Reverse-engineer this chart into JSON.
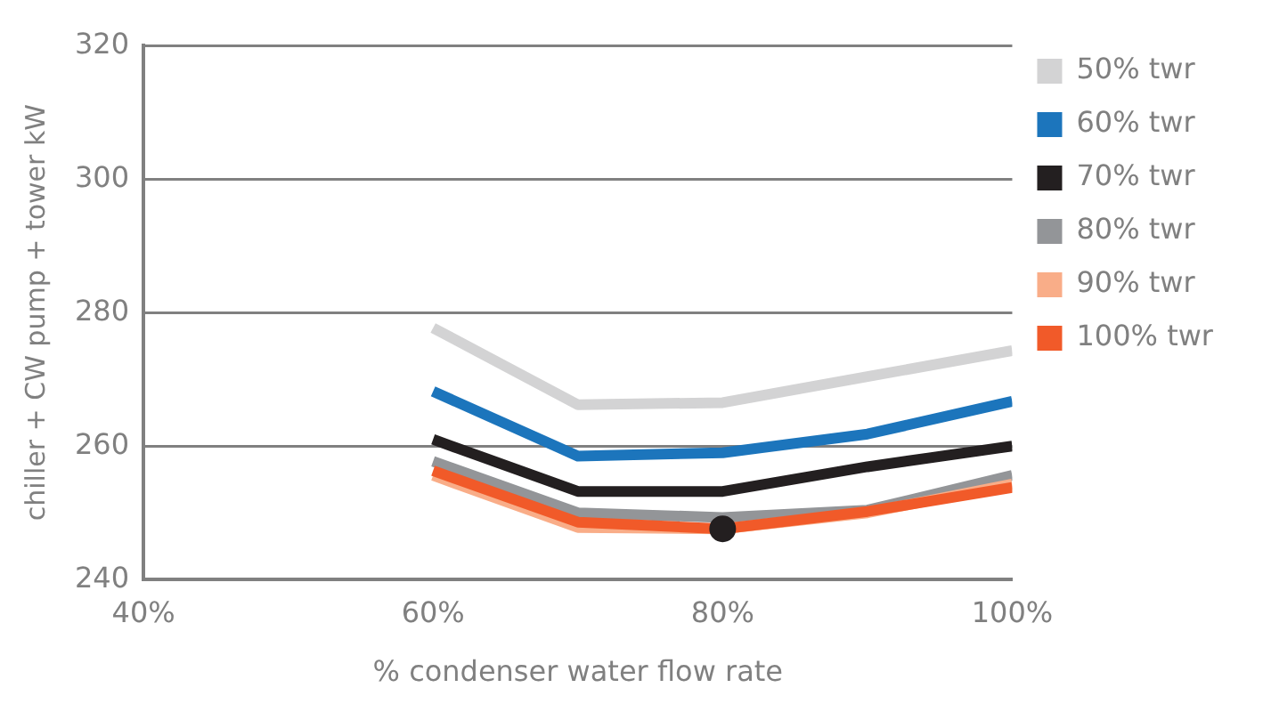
{
  "chart_data": {
    "type": "line",
    "xlabel": "% condenser water flow rate",
    "ylabel": "chiller + CW pump + tower kW",
    "x": [
      60,
      70,
      80,
      90,
      100
    ],
    "xlim": [
      40,
      100
    ],
    "xticks": [
      {
        "value": 40,
        "label": "40%"
      },
      {
        "value": 60,
        "label": "60%"
      },
      {
        "value": 80,
        "label": "80%"
      },
      {
        "value": 100,
        "label": "100%"
      }
    ],
    "ylim": [
      240,
      320
    ],
    "yticks": [
      240,
      260,
      280,
      300,
      320
    ],
    "grid": "y",
    "legend": "right",
    "line_style": "solid",
    "marker": "none",
    "series": [
      {
        "name": "50% twr",
        "color": "#d3d3d4",
        "values": [
          277.7,
          266.2,
          266.5,
          270.4,
          274.3
        ]
      },
      {
        "name": "60% twr",
        "color": "#1c75bc",
        "values": [
          268.2,
          258.5,
          259.0,
          261.8,
          266.7
        ]
      },
      {
        "name": "70% twr",
        "color": "#231f20",
        "values": [
          261.0,
          253.2,
          253.2,
          256.9,
          260.0
        ]
      },
      {
        "name": "80% twr",
        "color": "#939598",
        "values": [
          257.7,
          250.0,
          249.3,
          250.4,
          255.6
        ]
      },
      {
        "name": "90% twr",
        "color": "#f9ad88",
        "values": [
          255.6,
          247.8,
          247.6,
          250.0,
          254.3
        ]
      },
      {
        "name": "100% twr",
        "color": "#f15a29",
        "values": [
          256.3,
          248.6,
          247.6,
          250.2,
          253.8
        ]
      },
      {
        "type": "scatter",
        "marker": "circle",
        "color": "#231f20",
        "x": [
          80
        ],
        "values": [
          247.6
        ]
      }
    ]
  }
}
